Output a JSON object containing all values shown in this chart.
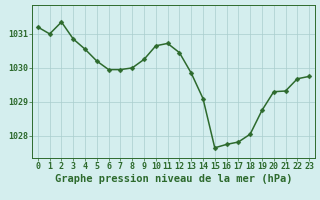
{
  "x": [
    0,
    1,
    2,
    3,
    4,
    5,
    6,
    7,
    8,
    9,
    10,
    11,
    12,
    13,
    14,
    15,
    16,
    17,
    18,
    19,
    20,
    21,
    22,
    23
  ],
  "y": [
    1031.2,
    1031.0,
    1031.35,
    1030.85,
    1030.55,
    1030.2,
    1029.95,
    1029.95,
    1030.0,
    1030.25,
    1030.65,
    1030.72,
    1030.45,
    1029.85,
    1029.1,
    1027.65,
    1027.75,
    1027.82,
    1028.05,
    1028.75,
    1029.3,
    1029.32,
    1029.68,
    1029.75
  ],
  "line_color": "#2d6a2d",
  "marker": "D",
  "marker_size": 2.5,
  "background_color": "#d4eeee",
  "grid_color": "#aacece",
  "title": "Graphe pression niveau de la mer (hPa)",
  "ylim": [
    1027.35,
    1031.85
  ],
  "xlim": [
    -0.5,
    23.5
  ],
  "yticks": [
    1028,
    1029,
    1030,
    1031
  ],
  "xticks": [
    0,
    1,
    2,
    3,
    4,
    5,
    6,
    7,
    8,
    9,
    10,
    11,
    12,
    13,
    14,
    15,
    16,
    17,
    18,
    19,
    20,
    21,
    22,
    23
  ],
  "title_fontsize": 7.5,
  "tick_fontsize": 6.0,
  "line_width": 1.1
}
